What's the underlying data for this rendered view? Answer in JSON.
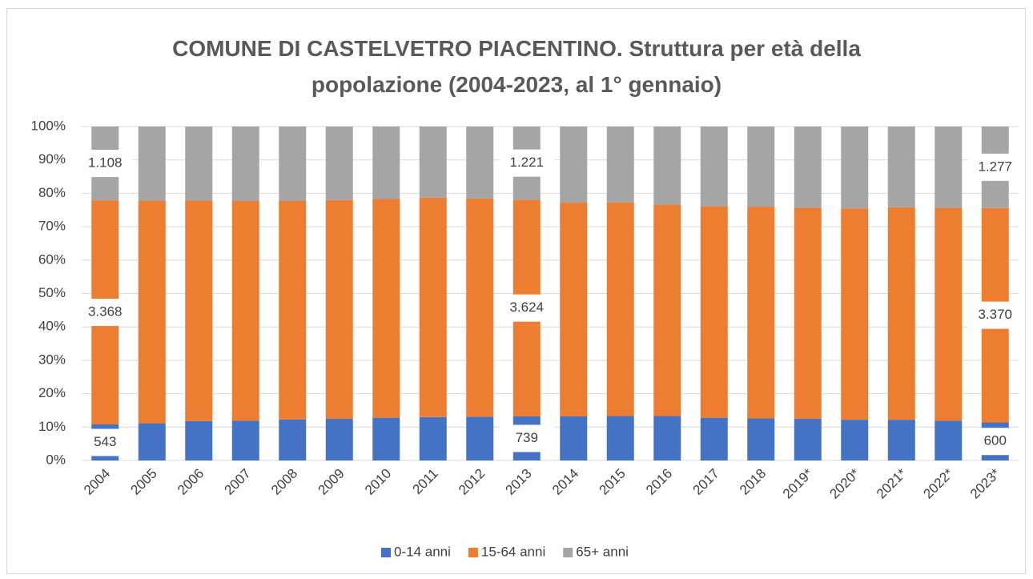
{
  "chart_data": {
    "type": "bar",
    "stacked": true,
    "title": "COMUNE DI CASTELVETRO PIACENTINO. Struttura per età della popolazione (2004-2023, al 1° gennaio)",
    "categories": [
      "2004",
      "2005",
      "2006",
      "2007",
      "2008",
      "2009",
      "2010",
      "2011",
      "2012",
      "2013",
      "2014",
      "2015",
      "2016",
      "2017",
      "2018",
      "2019*",
      "2020*",
      "2021*",
      "2022*",
      "2023*"
    ],
    "series": [
      {
        "name": "0-14 anni",
        "color": "#4472c4",
        "values": [
          10.8,
          11.2,
          11.8,
          11.9,
          12.3,
          12.5,
          12.8,
          13.0,
          13.1,
          13.2,
          13.2,
          13.3,
          13.3,
          12.8,
          12.6,
          12.5,
          12.2,
          12.2,
          11.9,
          11.4
        ],
        "data_labels": [
          "543",
          null,
          null,
          null,
          null,
          null,
          null,
          null,
          null,
          "739",
          null,
          null,
          null,
          null,
          null,
          null,
          null,
          null,
          null,
          "600"
        ]
      },
      {
        "name": "15-64 anni",
        "color": "#ed7d31",
        "values": [
          67.1,
          66.6,
          66.0,
          65.8,
          65.4,
          65.5,
          65.5,
          65.7,
          65.4,
          64.9,
          64.0,
          64.0,
          63.4,
          63.4,
          63.4,
          63.2,
          63.3,
          63.6,
          63.8,
          64.2
        ],
        "data_labels": [
          "3.368",
          null,
          null,
          null,
          null,
          null,
          null,
          null,
          null,
          "3.624",
          null,
          null,
          null,
          null,
          null,
          null,
          null,
          null,
          null,
          "3.370"
        ]
      },
      {
        "name": "65+ anni",
        "color": "#a5a5a5",
        "values": [
          22.1,
          22.2,
          22.2,
          22.3,
          22.3,
          22.0,
          21.7,
          21.3,
          21.5,
          21.9,
          22.8,
          22.7,
          23.3,
          23.8,
          24.0,
          24.3,
          24.5,
          24.2,
          24.3,
          24.4
        ],
        "data_labels": [
          "1.108",
          null,
          null,
          null,
          null,
          null,
          null,
          null,
          null,
          "1.221",
          null,
          null,
          null,
          null,
          null,
          null,
          null,
          null,
          null,
          "1.277"
        ]
      }
    ],
    "ylim": [
      0,
      100
    ],
    "yticks": [
      {
        "value": 0,
        "label": "0%"
      },
      {
        "value": 10,
        "label": "10%"
      },
      {
        "value": 20,
        "label": "20%"
      },
      {
        "value": 30,
        "label": "30%"
      },
      {
        "value": 40,
        "label": "40%"
      },
      {
        "value": 50,
        "label": "50%"
      },
      {
        "value": 60,
        "label": "60%"
      },
      {
        "value": 70,
        "label": "70%"
      },
      {
        "value": 80,
        "label": "80%"
      },
      {
        "value": 90,
        "label": "90%"
      },
      {
        "value": 100,
        "label": "100%"
      }
    ],
    "grid": true,
    "legend": "bottom"
  }
}
